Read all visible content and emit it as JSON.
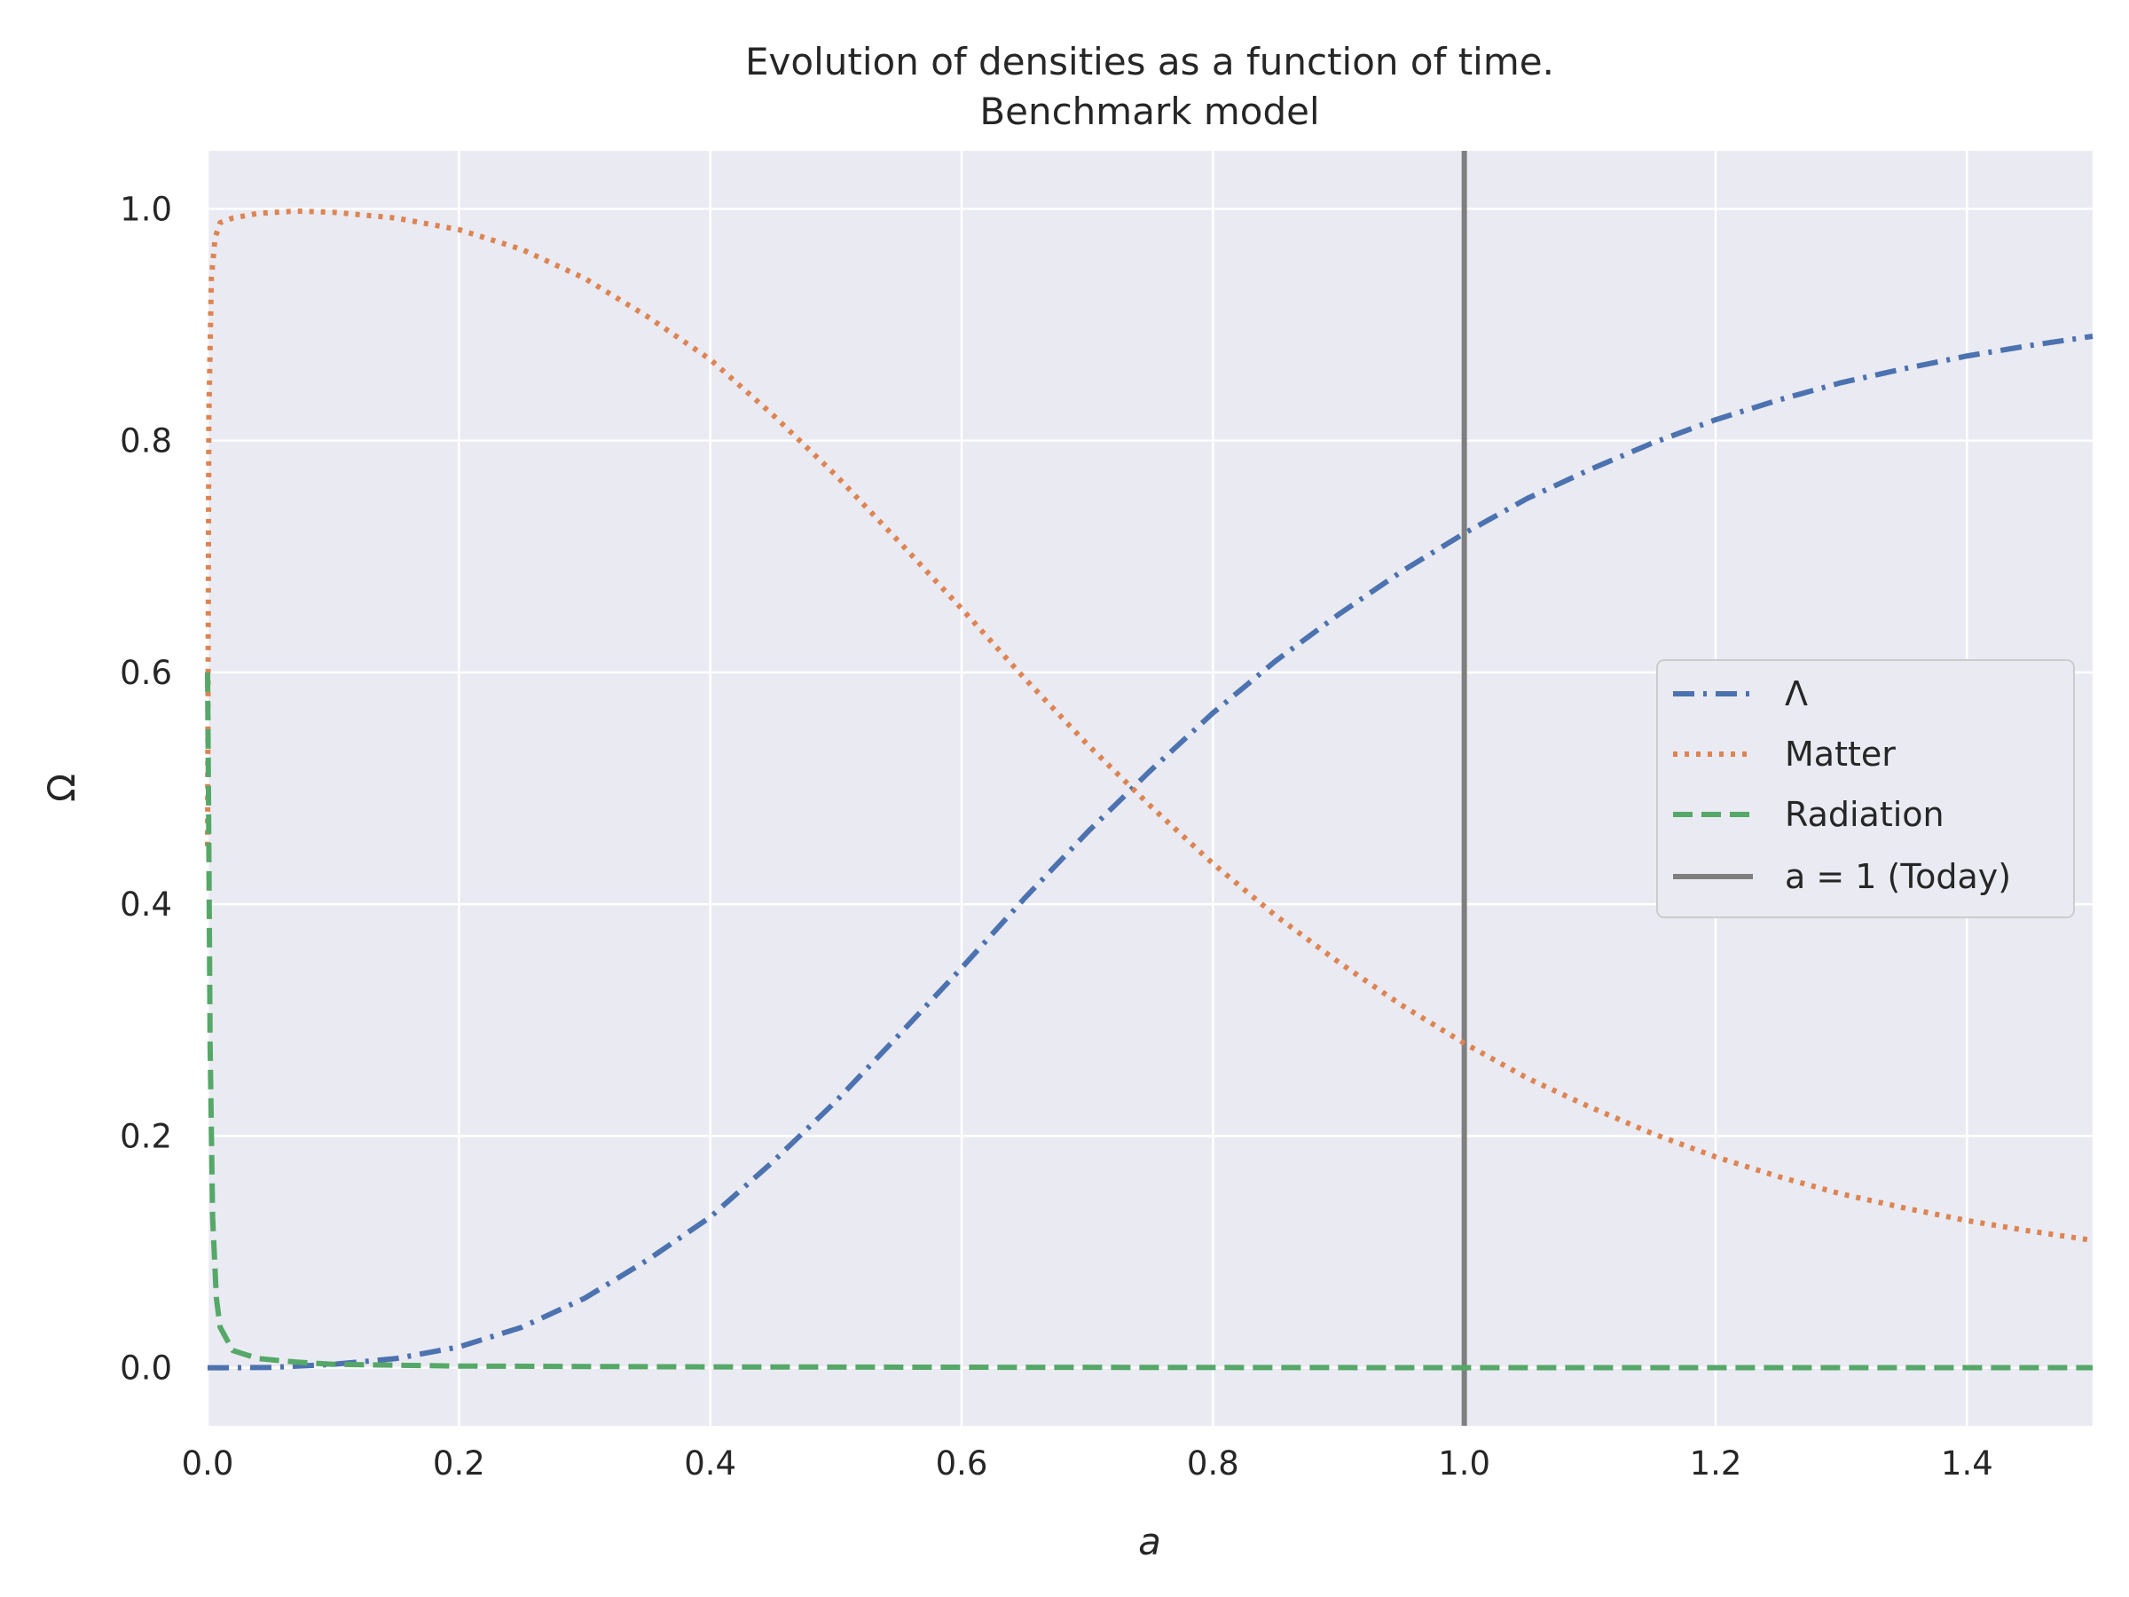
{
  "chart_data": {
    "type": "line",
    "title": "Evolution of densities as a function of time.",
    "subtitle": "Benchmark model",
    "xlabel": "a",
    "ylabel": "Ω",
    "xlim": [
      0.0,
      1.5
    ],
    "ylim": [
      -0.05,
      1.05
    ],
    "x_ticks": [
      "0.0",
      "0.2",
      "0.4",
      "0.6",
      "0.8",
      "1.0",
      "1.2",
      "1.4"
    ],
    "y_ticks": [
      "0.0",
      "0.2",
      "0.4",
      "0.6",
      "0.8",
      "1.0"
    ],
    "grid": true,
    "legend_position": "center-right",
    "series": [
      {
        "name": "Λ",
        "style": "dashdot",
        "color": "#4c72b0",
        "x": [
          0.0,
          0.05,
          0.1,
          0.15,
          0.2,
          0.25,
          0.3,
          0.35,
          0.4,
          0.45,
          0.5,
          0.55,
          0.6,
          0.65,
          0.7,
          0.75,
          0.8,
          0.85,
          0.9,
          0.95,
          1.0,
          1.05,
          1.1,
          1.15,
          1.2,
          1.25,
          1.3,
          1.35,
          1.4,
          1.45,
          1.5
        ],
        "y": [
          0.0,
          0.0003,
          0.003,
          0.008,
          0.018,
          0.035,
          0.06,
          0.093,
          0.13,
          0.178,
          0.23,
          0.287,
          0.345,
          0.405,
          0.462,
          0.515,
          0.565,
          0.61,
          0.65,
          0.687,
          0.72,
          0.75,
          0.775,
          0.798,
          0.818,
          0.835,
          0.85,
          0.862,
          0.873,
          0.882,
          0.89
        ]
      },
      {
        "name": "Matter",
        "style": "dotted",
        "color": "#dd8452",
        "x": [
          0.0,
          0.001,
          0.003,
          0.006,
          0.01,
          0.02,
          0.04,
          0.07,
          0.1,
          0.15,
          0.2,
          0.25,
          0.3,
          0.35,
          0.4,
          0.45,
          0.5,
          0.55,
          0.6,
          0.65,
          0.7,
          0.75,
          0.8,
          0.85,
          0.9,
          0.95,
          1.0,
          1.05,
          1.1,
          1.15,
          1.2,
          1.25,
          1.3,
          1.35,
          1.4,
          1.45,
          1.5
        ],
        "y": [
          0.45,
          0.82,
          0.94,
          0.975,
          0.988,
          0.992,
          0.996,
          0.998,
          0.997,
          0.992,
          0.982,
          0.965,
          0.94,
          0.907,
          0.87,
          0.822,
          0.77,
          0.713,
          0.655,
          0.595,
          0.538,
          0.485,
          0.435,
          0.39,
          0.35,
          0.313,
          0.28,
          0.25,
          0.225,
          0.202,
          0.182,
          0.165,
          0.15,
          0.138,
          0.127,
          0.118,
          0.11
        ]
      },
      {
        "name": "Radiation",
        "style": "dashed",
        "color": "#55a868",
        "x": [
          0.0,
          0.001,
          0.002,
          0.004,
          0.007,
          0.01,
          0.02,
          0.04,
          0.07,
          0.1,
          0.2,
          0.4,
          0.6,
          0.8,
          1.0,
          1.2,
          1.4,
          1.5
        ],
        "y": [
          0.6,
          0.45,
          0.28,
          0.13,
          0.06,
          0.035,
          0.015,
          0.008,
          0.005,
          0.003,
          0.0015,
          0.0008,
          0.0005,
          0.0003,
          0.0001,
          0.0001,
          0.0001,
          0.0001
        ]
      }
    ],
    "vline": {
      "x": 1.0,
      "name": "a = 1 (Today)",
      "color": "#7f7f7f"
    }
  },
  "colors": {
    "plot_background": "#eaeaf2",
    "grid": "#ffffff",
    "text": "#262626"
  }
}
